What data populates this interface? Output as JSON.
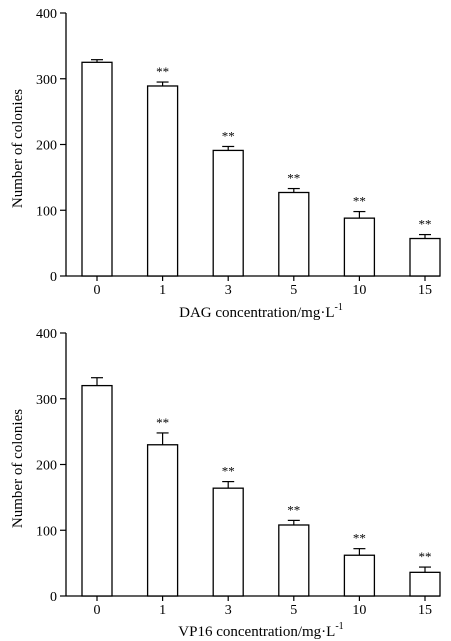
{
  "chart_data": [
    {
      "type": "bar",
      "categories": [
        "0",
        "1",
        "3",
        "5",
        "10",
        "15"
      ],
      "values": [
        325,
        289,
        191,
        127,
        88,
        57
      ],
      "errors": [
        4,
        6,
        6,
        6,
        10,
        6
      ],
      "significance": [
        "",
        "**",
        "**",
        "**",
        "**",
        "**"
      ],
      "ylim": [
        0,
        400
      ],
      "yticks": [
        "0",
        "100",
        "200",
        "300",
        "400"
      ],
      "ylabel": "Number of colonies",
      "xlabel": "DAG concentration/mg·L",
      "xlabel_sup": "-1",
      "grid": false,
      "bar_fill": "#ffffff",
      "bar_stroke": "#000000"
    },
    {
      "type": "bar",
      "categories": [
        "0",
        "1",
        "3",
        "5",
        "10",
        "15"
      ],
      "values": [
        320,
        230,
        164,
        108,
        62,
        36
      ],
      "errors": [
        12,
        18,
        10,
        7,
        10,
        8
      ],
      "significance": [
        "",
        "**",
        "**",
        "**",
        "**",
        "**"
      ],
      "ylim": [
        0,
        400
      ],
      "yticks": [
        "0",
        "100",
        "200",
        "300",
        "400"
      ],
      "ylabel": "Number of colonies",
      "xlabel": "VP16 concentration/mg·L",
      "xlabel_sup": "-1",
      "grid": false,
      "bar_fill": "#ffffff",
      "bar_stroke": "#000000"
    }
  ]
}
